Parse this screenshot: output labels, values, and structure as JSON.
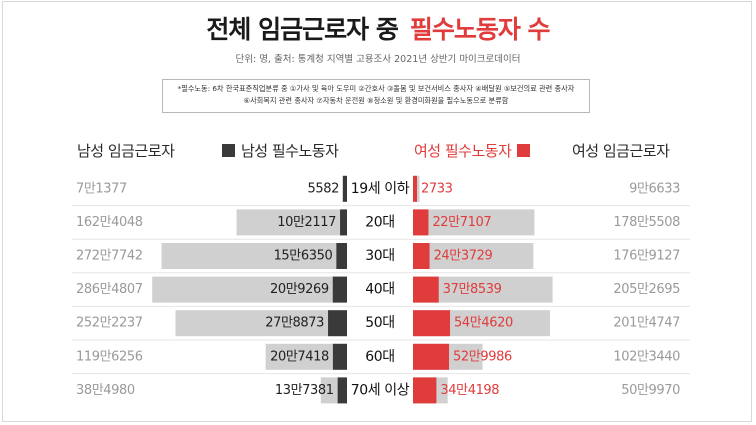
{
  "title": {
    "part1": "전체 임금근로자 중",
    "part2": "필수노동자 수"
  },
  "subtitle": "단위: 명, 출처: 통계청 지역별 고용조사 2021년 상반기 마이크로데이터",
  "note": {
    "line1": "*필수노동: 6차 한국표준직업분류 중 ①가사 및 육아 도우미 ②간호사 ③돌봄 및 보건서비스 종사자 ④배달원 ⑤보건의료 관련 종사자",
    "line2": "⑥사회복지 관련 종사자 ⑦자동차 운전원 ⑧청소원 및 환경미화원을 필수노동으로 분류함"
  },
  "headers": {
    "male_total": "남성 임금근로자",
    "male_essential": "남성 필수노동자",
    "female_essential": "여성 필수노동자",
    "female_total": "여성 임금근로자"
  },
  "colors": {
    "male_essential": "#3a3a3a",
    "female_essential": "#e03c3c",
    "total_bar": "#d0d0d0",
    "total_label": "#9a9a9a",
    "title_red": "#e03c3c"
  },
  "chart_data": {
    "type": "bar",
    "orientation": "horizontal-butterfly",
    "categories": [
      "19세 이하",
      "20대",
      "30대",
      "40대",
      "50대",
      "60대",
      "70세 이상"
    ],
    "series": [
      {
        "name": "남성 임금근로자",
        "values": [
          71377,
          1624048,
          2727742,
          2864807,
          2522237,
          1196256,
          384980
        ],
        "labels": [
          "7만1377",
          "162만4048",
          "272만7742",
          "286만4807",
          "252만2237",
          "119만6256",
          "38만4980"
        ]
      },
      {
        "name": "남성 필수노동자",
        "values": [
          5582,
          102117,
          156350,
          209269,
          278873,
          207418,
          137381
        ],
        "labels": [
          "5582",
          "10만2117",
          "15만6350",
          "20만9269",
          "27만8873",
          "20만7418",
          "13만7381"
        ]
      },
      {
        "name": "여성 필수노동자",
        "values": [
          2733,
          227107,
          243729,
          378539,
          544620,
          529986,
          344198
        ],
        "labels": [
          "2733",
          "22만7107",
          "24만3729",
          "37만8539",
          "54만4620",
          "52만9986",
          "34만4198"
        ]
      },
      {
        "name": "여성 임금근로자",
        "values": [
          96633,
          1785508,
          1769127,
          2052695,
          2014747,
          1023440,
          509970
        ],
        "labels": [
          "9만6633",
          "178만5508",
          "176만9127",
          "205만2695",
          "201만4747",
          "102만3440",
          "50만9970"
        ]
      }
    ]
  }
}
